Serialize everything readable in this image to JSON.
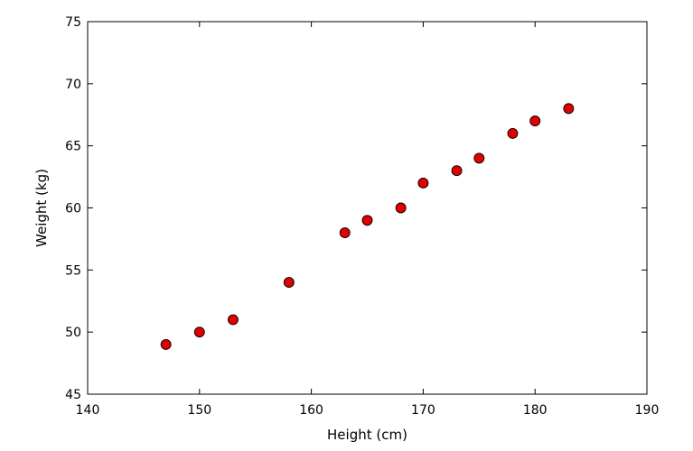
{
  "chart_data": {
    "type": "scatter",
    "title": "",
    "xlabel": "Height (cm)",
    "ylabel": "Weight (kg)",
    "xlim": [
      140,
      190
    ],
    "ylim": [
      45,
      75
    ],
    "xticks": [
      140,
      150,
      160,
      170,
      180,
      190
    ],
    "yticks": [
      45,
      50,
      55,
      60,
      65,
      70,
      75
    ],
    "grid": false,
    "legend": false,
    "marker_color": "#e00000",
    "marker_edge_color": "#000000",
    "points": [
      {
        "x": 147,
        "y": 49
      },
      {
        "x": 150,
        "y": 50
      },
      {
        "x": 153,
        "y": 51
      },
      {
        "x": 158,
        "y": 54
      },
      {
        "x": 163,
        "y": 58
      },
      {
        "x": 165,
        "y": 59
      },
      {
        "x": 168,
        "y": 60
      },
      {
        "x": 170,
        "y": 62
      },
      {
        "x": 173,
        "y": 63
      },
      {
        "x": 175,
        "y": 64
      },
      {
        "x": 178,
        "y": 66
      },
      {
        "x": 180,
        "y": 67
      },
      {
        "x": 183,
        "y": 68
      }
    ]
  }
}
